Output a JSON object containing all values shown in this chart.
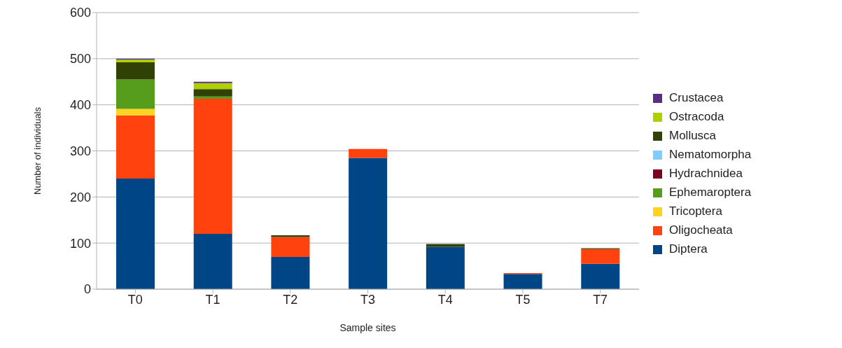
{
  "chart_data": {
    "type": "bar",
    "stacked": true,
    "xlabel": "Sample sites",
    "ylabel": "Number of individuals",
    "categories": [
      "T0",
      "T1",
      "T2",
      "T3",
      "T4",
      "T5",
      "T7"
    ],
    "ylim": [
      0,
      600
    ],
    "yticks": [
      0,
      100,
      200,
      300,
      400,
      500,
      600
    ],
    "grid": "y",
    "legend": "right",
    "series": [
      {
        "name": "Diptera",
        "color": "#004586",
        "values": [
          240,
          120,
          70,
          285,
          92,
          33,
          55
        ]
      },
      {
        "name": "Oligocheata",
        "color": "#ff420e",
        "values": [
          137,
          293,
          43,
          19,
          null,
          2,
          32
        ]
      },
      {
        "name": "Tricoptera",
        "color": "#ffd320",
        "values": [
          14,
          null,
          null,
          null,
          null,
          null,
          null
        ]
      },
      {
        "name": "Ephemaroptera",
        "color": "#579d1c",
        "values": [
          64,
          5,
          null,
          null,
          null,
          null,
          null
        ]
      },
      {
        "name": "Hydrachnidea",
        "color": "#7e0021",
        "values": [
          null,
          null,
          null,
          null,
          null,
          null,
          null
        ]
      },
      {
        "name": "Nematomorpha",
        "color": "#83caff",
        "values": [
          null,
          null,
          null,
          null,
          null,
          null,
          null
        ]
      },
      {
        "name": "Mollusca",
        "color": "#314004",
        "values": [
          37,
          16,
          4,
          null,
          6,
          null,
          2
        ]
      },
      {
        "name": "Ostracoda",
        "color": "#aecf00",
        "values": [
          6,
          13,
          null,
          null,
          null,
          null,
          null
        ]
      },
      {
        "name": "Crustacea",
        "color": "#5b2c83",
        "values": [
          2,
          3,
          null,
          null,
          null,
          null,
          null
        ]
      }
    ]
  }
}
